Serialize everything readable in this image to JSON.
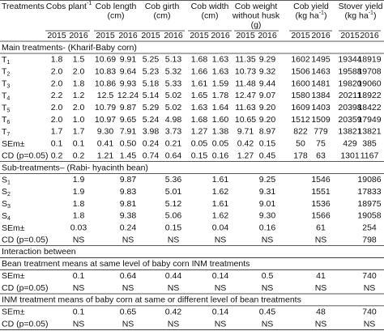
{
  "header": {
    "treatments": "Treatments",
    "columns": [
      {
        "lines": [
          "Cobs plant"
        ],
        "sup": "-1"
      },
      {
        "lines": [
          "Cob length",
          "(cm)"
        ]
      },
      {
        "lines": [
          "Cob girth",
          "(cm)"
        ]
      },
      {
        "lines": [
          "Cob width",
          "(cm)"
        ]
      },
      {
        "lines": [
          "Cob weight",
          "without husk",
          "(g)"
        ]
      },
      {
        "lines": [
          "Cob yield",
          "(kg ha"
        ],
        "sup": "-1",
        "tail": ")"
      },
      {
        "lines": [
          "Stover yield",
          "(kg ha"
        ],
        "sup": "-1",
        "tail": ")"
      }
    ],
    "years": [
      "2015",
      "2016"
    ]
  },
  "sections": [
    {
      "title": "Main treatments- (Kharif-Baby corn)",
      "rows": [
        {
          "label": "T",
          "sub": "1",
          "values": [
            "1.8",
            "1.5",
            "10.69",
            "9.91",
            "5.25",
            "5.13",
            "1.68",
            "1.63",
            "11.35",
            "9.29",
            "1602",
            "1495",
            "19344",
            "18919"
          ]
        },
        {
          "label": "T",
          "sub": "2",
          "values": [
            "2.0",
            "2.0",
            "10.83",
            "9.64",
            "5.23",
            "5.32",
            "1.66",
            "1.63",
            "10.73",
            "9.32",
            "1506",
            "1463",
            "19588",
            "19708"
          ]
        },
        {
          "label": "T",
          "sub": "3",
          "values": [
            "2.0",
            "1.8",
            "10.86",
            "9.93",
            "5.18",
            "5.33",
            "1.61",
            "1.59",
            "11.48",
            "9.44",
            "1600",
            "1481",
            "19820",
            "19060"
          ]
        },
        {
          "label": "T",
          "sub": "4",
          "values": [
            "2.2",
            "1.2",
            "12.5",
            "12.24",
            "5.14",
            "5.02",
            "1.65",
            "1.78",
            "12.47",
            "9.07",
            "1580",
            "1384",
            "20211",
            "18922"
          ]
        },
        {
          "label": "T",
          "sub": "5",
          "values": [
            "2.0",
            "2.0",
            "10.79",
            "9.87",
            "5.29",
            "5.02",
            "1.63",
            "1.64",
            "11.63",
            "9.20",
            "1609",
            "1403",
            "20398",
            "18422"
          ]
        },
        {
          "label": "T",
          "sub": "6",
          "values": [
            "2.0",
            "1.0",
            "10.97",
            "9.65",
            "5.24",
            "4.98",
            "1.68",
            "1.60",
            "10.65",
            "9.20",
            "1512",
            "1509",
            "20359",
            "17949"
          ]
        },
        {
          "label": "T",
          "sub": "7",
          "values": [
            "1.7",
            "1.7",
            "9.30",
            "7.91",
            "3.98",
            "3.73",
            "1.27",
            "1.38",
            "9.71",
            "8.97",
            "822",
            "779",
            "13821",
            "13821"
          ]
        },
        {
          "label": "SEm±",
          "values": [
            "0.1",
            "0.1",
            "0.41",
            "0.50",
            "0.24",
            "0.21",
            "0.05",
            "0.05",
            "0.42",
            "0.15",
            "50",
            "75",
            "429",
            "385"
          ]
        },
        {
          "label": "CD (p=0.05)",
          "values": [
            "0.2",
            "0.2",
            "1.21",
            "1.45",
            "0.74",
            "0.64",
            "0.15",
            "0.16",
            "1.27",
            "0.45",
            "178",
            "63",
            "1301",
            "1167"
          ]
        }
      ]
    },
    {
      "title": "Sub-treatments– (Rabi- hyacinth bean)",
      "rows": [
        {
          "label": "S",
          "sub": "1",
          "values_2016": [
            "1.9",
            "9.87",
            "5.36",
            "1.61",
            "9.25",
            "1546",
            "19086"
          ]
        },
        {
          "label": "S",
          "sub": "2",
          "values_2016": [
            "1.9",
            "9.83",
            "5.01",
            "1.62",
            "9.31",
            "1551",
            "17833"
          ]
        },
        {
          "label": "S",
          "sub": "3",
          "values_2016": [
            "1.8",
            "9.81",
            "5.12",
            "1.61",
            "9.01",
            "1536",
            "18975"
          ]
        },
        {
          "label": "S",
          "sub": "4",
          "values_2016": [
            "1.8",
            "9.38",
            "5.06",
            "1.62",
            "9.30",
            "1566",
            "19058"
          ]
        },
        {
          "label": "SEm±",
          "values_2016": [
            "0.03",
            "0.24",
            "0.15",
            "0.04",
            "0.16",
            "61",
            "254"
          ]
        },
        {
          "label": "CD (p=0.05)",
          "values_2016": [
            "NS",
            "NS",
            "NS",
            "NS",
            "NS",
            "NS",
            "798"
          ]
        }
      ]
    },
    {
      "title": "Interaction  between"
    },
    {
      "title": "Bean treatment means at same level of baby corn INM treatments",
      "rows": [
        {
          "label": "SEm±",
          "values_2016": [
            "0.1",
            "0.64",
            "0.44",
            "0.14",
            "0.5",
            "41",
            "740"
          ]
        },
        {
          "label": "CD (p=0.05)",
          "values_2016": [
            "NS",
            "NS",
            "NS",
            "NS",
            "NS",
            "NS",
            "NS"
          ]
        }
      ]
    },
    {
      "title": "INM treatment means of baby corn at same or different level of bean treatments",
      "rows": [
        {
          "label": "SEm±",
          "values_2016": [
            "0.1",
            "0.65",
            "0.42",
            "0.14",
            "0.45",
            "48",
            "740"
          ]
        },
        {
          "label": "CD (p=0.05)",
          "values_2016": [
            "NS",
            "NS",
            "NS",
            "NS",
            "NS",
            "NS",
            "NS"
          ]
        }
      ]
    }
  ]
}
